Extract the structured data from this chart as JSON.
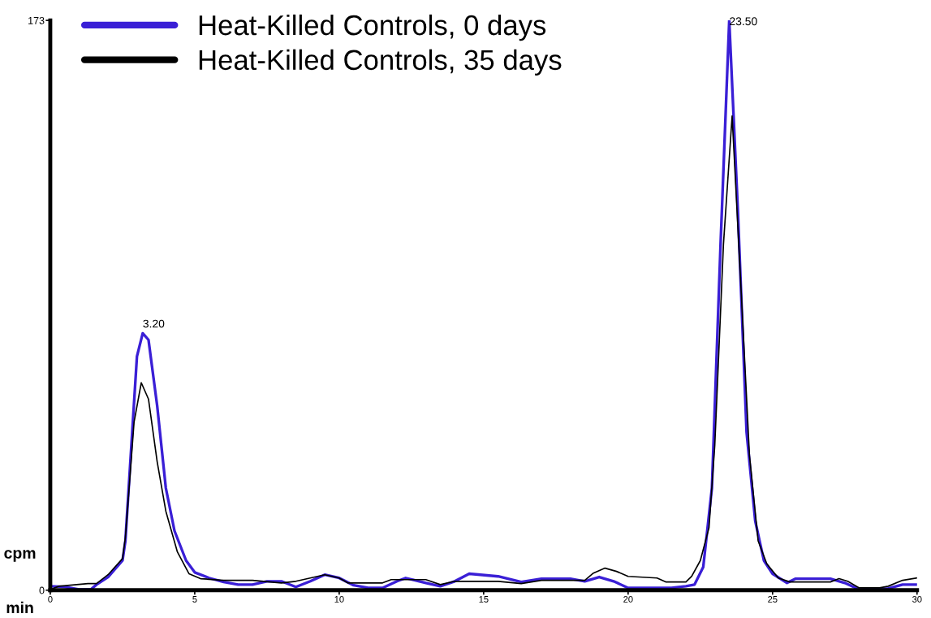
{
  "chart_data": {
    "type": "line",
    "xlabel": "min",
    "ylabel": "cpm",
    "xlim": [
      0,
      30
    ],
    "ylim": [
      0,
      173
    ],
    "xticks": [
      0,
      5,
      10,
      15,
      20,
      25,
      30
    ],
    "yticks": [
      0,
      173
    ],
    "grid": false,
    "legend": "top left",
    "marker": "none",
    "line_style": "solid",
    "annotations": [
      {
        "text": "3.20",
        "x": 3.2,
        "y": 78
      },
      {
        "text": "23.50",
        "x": 23.5,
        "y": 173
      }
    ],
    "series": [
      {
        "name": "Heat-Killed Controls, 0 days",
        "color": "#3a1fd6",
        "x": [
          0,
          0.5,
          1.0,
          1.4,
          1.6,
          2.0,
          2.5,
          2.6,
          3.0,
          3.2,
          3.4,
          3.7,
          4.0,
          4.3,
          4.7,
          5.0,
          5.5,
          6.0,
          6.5,
          7.0,
          7.5,
          8.0,
          8.5,
          9.0,
          9.5,
          10.0,
          10.5,
          11.0,
          11.5,
          12.0,
          12.3,
          13.0,
          13.5,
          14.0,
          14.5,
          15.5,
          16.3,
          17.0,
          18.0,
          18.5,
          19.0,
          19.5,
          20.0,
          21.5,
          22.0,
          22.3,
          22.6,
          22.9,
          23.2,
          23.5,
          23.8,
          24.1,
          24.4,
          24.7,
          25.0,
          25.5,
          25.8,
          27.0,
          27.5,
          28.0,
          29.0,
          29.5,
          30.0
        ],
        "values": [
          1.2,
          1,
          0.2,
          0.2,
          1.7,
          4,
          9,
          15,
          71,
          78,
          76,
          56,
          31,
          18,
          9,
          5.4,
          3.7,
          2.5,
          1.7,
          1.7,
          2.7,
          2.7,
          1,
          2.7,
          4.7,
          3.7,
          1.5,
          0.7,
          0.7,
          2.7,
          3.7,
          2.2,
          1.2,
          2.7,
          5,
          4.2,
          2.5,
          3.5,
          3.5,
          2.7,
          4,
          2.7,
          0.7,
          0.7,
          1.2,
          1.7,
          7,
          31,
          105,
          173,
          115,
          48,
          21,
          9,
          5,
          2.2,
          3.5,
          3.5,
          2.2,
          0.2,
          0.5,
          1.7,
          1.7
        ]
      },
      {
        "name": "Heat-Killed Controls, 35 days",
        "color": "#000000",
        "x": [
          0,
          0.3,
          1.3,
          1.6,
          2.0,
          2.5,
          2.6,
          2.9,
          3.15,
          3.4,
          3.7,
          4.0,
          4.4,
          4.8,
          5.2,
          6.0,
          7.0,
          8.0,
          8.5,
          9.0,
          9.5,
          10.0,
          10.3,
          11.5,
          11.8,
          13.0,
          13.5,
          14.0,
          15.5,
          16.3,
          17.0,
          18.5,
          18.8,
          19.2,
          19.6,
          20.0,
          21.0,
          21.3,
          22.0,
          22.2,
          22.5,
          22.8,
          23.0,
          23.3,
          23.6,
          23.9,
          24.2,
          24.5,
          24.8,
          25.2,
          25.6,
          27.0,
          27.3,
          27.6,
          28.0,
          28.7,
          29.0,
          29.5,
          30.0
        ],
        "values": [
          0.2,
          1.2,
          2,
          2,
          4.7,
          9.6,
          16,
          51,
          63,
          58,
          39,
          24,
          11.6,
          5,
          3.5,
          3,
          3,
          2.2,
          2.7,
          3.7,
          4.7,
          3.7,
          2.2,
          2.2,
          3.2,
          3.2,
          1.7,
          2.7,
          2.7,
          2,
          3,
          3,
          5.2,
          6.7,
          5.7,
          4.2,
          3.7,
          2.5,
          2.5,
          4.2,
          9,
          19,
          44,
          105,
          144,
          93,
          41,
          15,
          8,
          3.7,
          2.5,
          2.5,
          3.5,
          2.7,
          0.7,
          0.7,
          1.2,
          3,
          3.7
        ]
      }
    ]
  }
}
